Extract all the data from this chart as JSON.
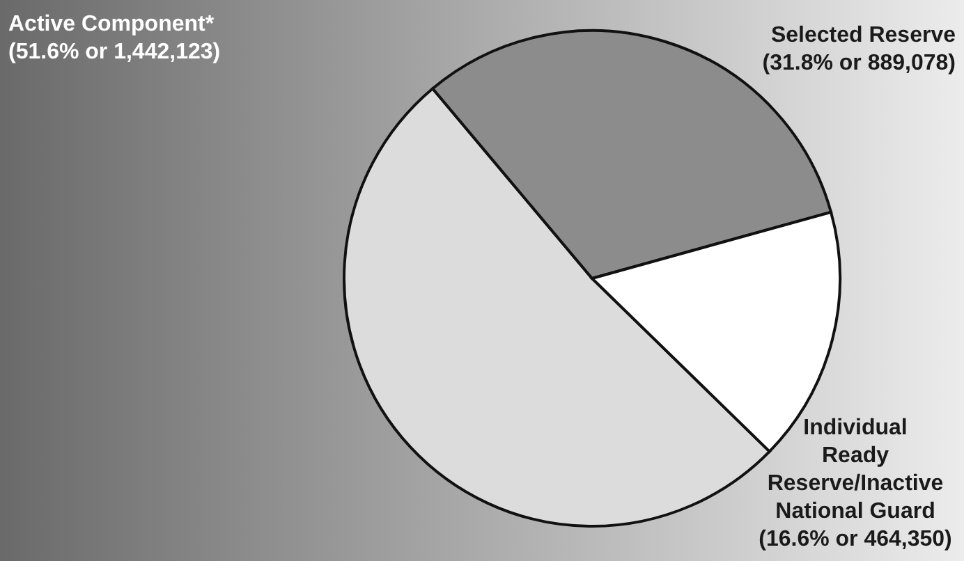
{
  "chart_data": {
    "type": "pie",
    "categories": [
      "Active Component*",
      "Selected Reserve",
      "Individual Ready Reserve/Inactive National Guard"
    ],
    "values": [
      1442123,
      889078,
      464350
    ],
    "value_labels": [
      "(51.6% or 1,442,123)",
      "(31.8% or 889,078)",
      "(16.6% or 464,350)"
    ],
    "colors": [
      "#dcdcdc",
      "#8c8c8c",
      "#ffffff"
    ]
  }
}
